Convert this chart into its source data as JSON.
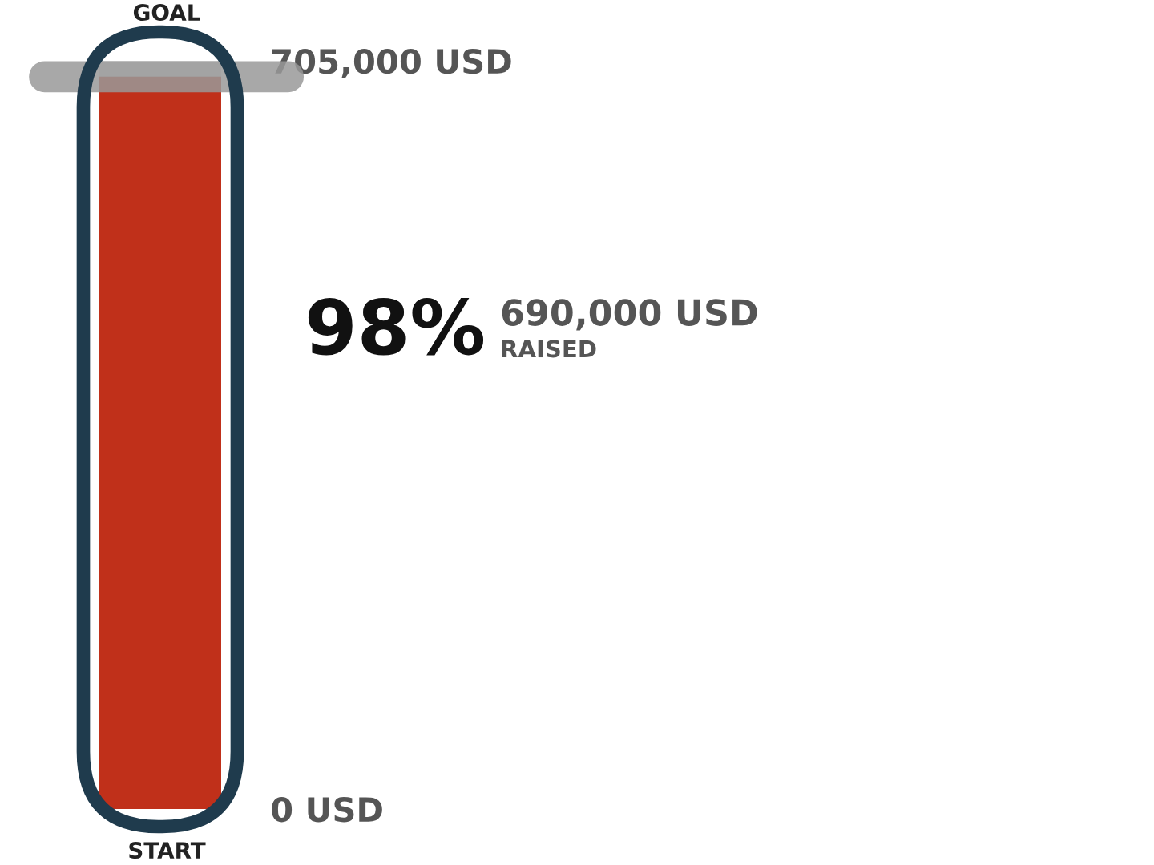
{
  "chart_data": {
    "type": "bar",
    "categories": [
      null
    ],
    "values": [
      690000
    ],
    "color": "#c0301a",
    "ylim": [
      0,
      705000
    ],
    "yticks": [
      {
        "value": 0,
        "label": "0 USD"
      },
      {
        "value": 705000,
        "label": "705,000 USD"
      }
    ],
    "ref_lines": [
      {
        "axis": "y",
        "value": 690000,
        "color": "#999999"
      }
    ],
    "annotations": [
      "GOAL",
      "START",
      "98%",
      "690,000 USD",
      "RAISED"
    ],
    "grid": false,
    "legend": false
  }
}
